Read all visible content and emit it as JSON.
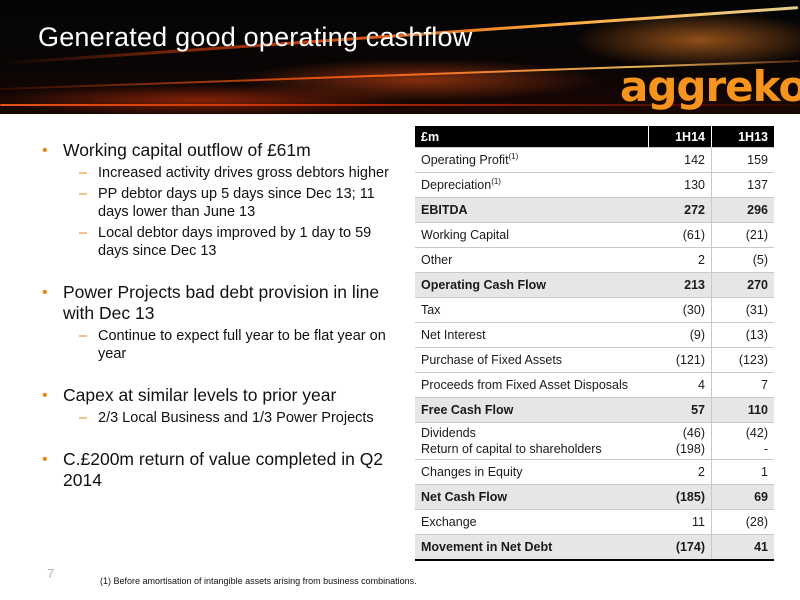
{
  "slide": {
    "title": "Generated good operating cashflow",
    "logo_text": "aggreko",
    "page_number": "7",
    "footnote": "(1) Before amortisation of intangible assets arising from business combinations."
  },
  "bullets": [
    {
      "text": "Working capital outflow of £61m",
      "subs": [
        "Increased activity drives gross debtors higher",
        "PP debtor days up 5 days since Dec 13; 11 days lower than June 13",
        "Local debtor days improved by 1 day to 59 days since Dec 13"
      ]
    },
    {
      "text": "Power Projects bad debt provision in line with Dec 13",
      "subs": [
        "Continue to expect full year to be flat year on year"
      ]
    },
    {
      "text": "Capex at similar levels to prior year",
      "subs": [
        "2/3 Local Business and 1/3 Power Projects"
      ]
    },
    {
      "text": "C.£200m return of value completed in Q2 2014",
      "subs": []
    }
  ],
  "table": {
    "header": {
      "label": "£m",
      "col1": "1H14",
      "col2": "1H13"
    },
    "rows": [
      {
        "label": "Operating Profit",
        "sup": "(1)",
        "v1": "142",
        "v2": "159"
      },
      {
        "label": "Depreciation",
        "sup": "(1)",
        "v1": "130",
        "v2": "137"
      },
      {
        "label": "EBITDA",
        "v1": "272",
        "v2": "296",
        "highlight": true
      },
      {
        "label": "Working Capital",
        "v1": "(61)",
        "v2": "(21)"
      },
      {
        "label": "Other",
        "v1": "2",
        "v2": "(5)"
      },
      {
        "label": "Operating Cash Flow",
        "v1": "213",
        "v2": "270",
        "highlight": true
      },
      {
        "label": "Tax",
        "v1": "(30)",
        "v2": "(31)"
      },
      {
        "label": "Net Interest",
        "v1": "(9)",
        "v2": "(13)"
      },
      {
        "label": "Purchase of Fixed Assets",
        "v1": "(121)",
        "v2": "(123)"
      },
      {
        "label": "Proceeds from Fixed Asset Disposals",
        "v1": "4",
        "v2": "7"
      },
      {
        "label": "Free Cash Flow",
        "v1": "57",
        "v2": "110",
        "highlight": true
      },
      {
        "label": "Dividends",
        "label2": "Return of capital to shareholders",
        "v1": "(46)",
        "v1b": "(198)",
        "v2": "(42)",
        "v2b": "-",
        "tall": true
      },
      {
        "label": "Changes in Equity",
        "v1": "2",
        "v2": "1"
      },
      {
        "label": "Net Cash Flow",
        "v1": "(185)",
        "v2": "69",
        "highlight": true
      },
      {
        "label": "Exchange",
        "v1": "11",
        "v2": "(28)"
      },
      {
        "label": "Movement in Net Debt",
        "v1": "(174)",
        "v2": "41",
        "highlight": true,
        "last": true
      }
    ]
  },
  "colors": {
    "accent": "#f7941d",
    "bullet": "#e8841a",
    "highlight_row": "#e6e6e6"
  }
}
